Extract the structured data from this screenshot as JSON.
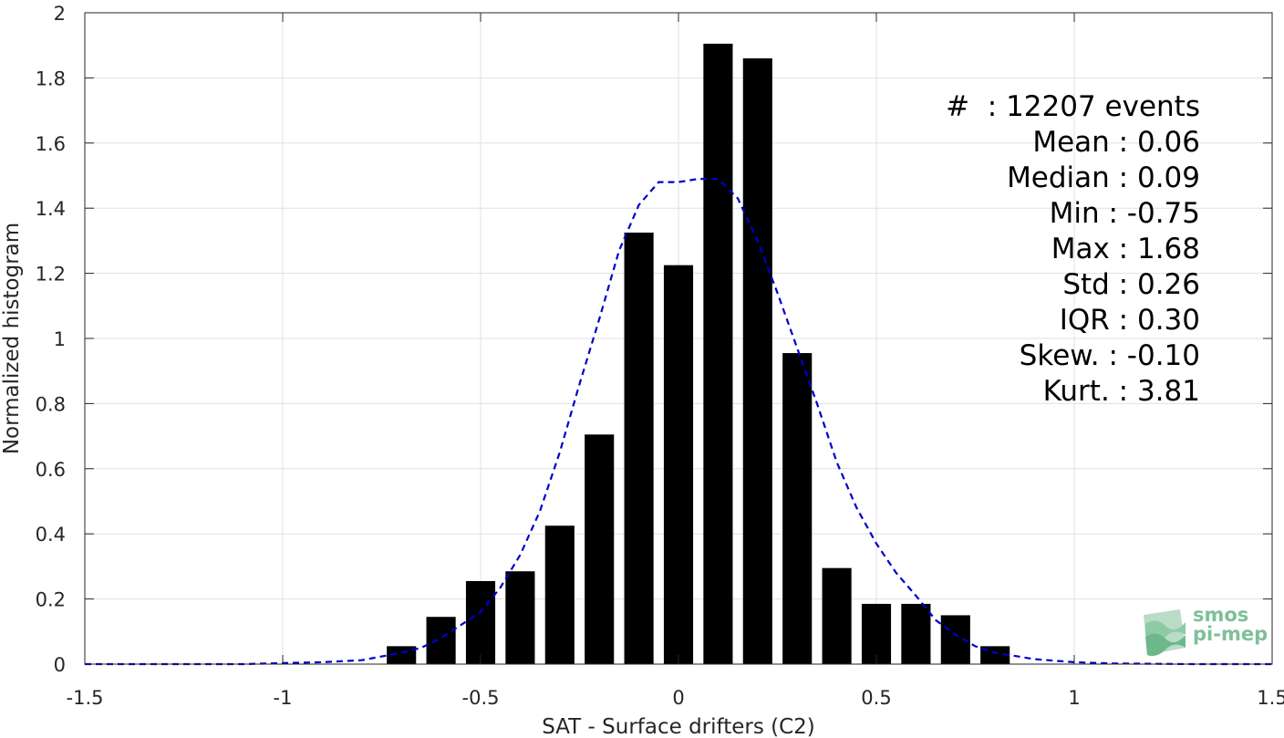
{
  "chart_data": {
    "type": "bar",
    "xlabel": "SAT - Surface drifters (C2)",
    "ylabel": "Normalized histogram",
    "xlim": [
      -1.5,
      1.5
    ],
    "ylim": [
      0,
      2
    ],
    "xticks": [
      "-1.5",
      "-1",
      "-0.5",
      "0",
      "0.5",
      "1",
      "1.5"
    ],
    "yticks": [
      "0",
      "0.2",
      "0.4",
      "0.6",
      "0.8",
      "1",
      "1.2",
      "1.4",
      "1.6",
      "1.8",
      "2"
    ],
    "grid": true,
    "bar_color": "#000000",
    "bars": {
      "x": [
        -0.7,
        -0.6,
        -0.5,
        -0.4,
        -0.3,
        -0.2,
        -0.1,
        0.0,
        0.1,
        0.2,
        0.3,
        0.4,
        0.5,
        0.6,
        0.7,
        0.8
      ],
      "values": [
        0.055,
        0.145,
        0.255,
        0.285,
        0.425,
        0.705,
        1.325,
        1.225,
        1.905,
        1.86,
        0.955,
        0.295,
        0.185,
        0.185,
        0.15,
        0.055
      ]
    },
    "fit_curve": {
      "style": "dashed",
      "color": "#0000cc",
      "x": [
        -1.5,
        -1.3,
        -1.1,
        -1.0,
        -0.9,
        -0.8,
        -0.7,
        -0.65,
        -0.6,
        -0.55,
        -0.5,
        -0.45,
        -0.4,
        -0.35,
        -0.3,
        -0.25,
        -0.2,
        -0.15,
        -0.1,
        -0.05,
        0.0,
        0.05,
        0.1,
        0.15,
        0.2,
        0.25,
        0.3,
        0.35,
        0.4,
        0.45,
        0.5,
        0.55,
        0.6,
        0.65,
        0.7,
        0.75,
        0.8,
        0.9,
        1.0,
        1.1,
        1.3,
        1.5
      ],
      "y": [
        0.0,
        0.0,
        0.0,
        0.003,
        0.006,
        0.012,
        0.035,
        0.05,
        0.08,
        0.12,
        0.16,
        0.235,
        0.335,
        0.47,
        0.65,
        0.86,
        1.06,
        1.27,
        1.41,
        1.48,
        1.48,
        1.49,
        1.49,
        1.43,
        1.3,
        1.14,
        0.97,
        0.8,
        0.62,
        0.48,
        0.37,
        0.28,
        0.21,
        0.135,
        0.09,
        0.055,
        0.035,
        0.015,
        0.006,
        0.002,
        0.0,
        0.0
      ]
    }
  },
  "stats": [
    "#  : 12207 events",
    "Mean : 0.06",
    "Median : 0.09",
    "Min : -0.75",
    "Max : 1.68",
    "Std : 0.26",
    "IQR : 0.30",
    "Skew. : -0.10",
    "Kurt. : 3.81"
  ],
  "logo": {
    "line1": "smos",
    "line2": "pi-mep",
    "color": "#7fbf9a"
  }
}
